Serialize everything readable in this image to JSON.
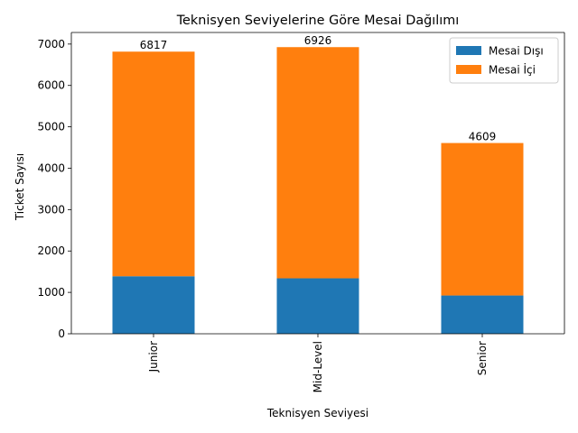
{
  "chart_data": {
    "type": "bar",
    "stacked": true,
    "title": "Teknisyen Seviyelerine Göre Mesai Dağılımı",
    "xlabel": "Teknisyen Seviyesi",
    "ylabel": "Ticket Sayısı",
    "categories": [
      "Junior",
      "Mid-Level",
      "Senior"
    ],
    "series": [
      {
        "name": "Mesai Dışı",
        "color": "#1f77b4",
        "values": [
          1390,
          1340,
          925
        ]
      },
      {
        "name": "Mesai İçi",
        "color": "#ff7f0e",
        "values": [
          5427,
          5586,
          3684
        ]
      }
    ],
    "totals": [
      6817,
      6926,
      4609
    ],
    "ylim": [
      0,
      7280
    ],
    "yticks": [
      0,
      1000,
      2000,
      3000,
      4000,
      5000,
      6000,
      7000
    ],
    "grid": false,
    "legend_position": "top-right",
    "xtick_rotation": 90
  }
}
